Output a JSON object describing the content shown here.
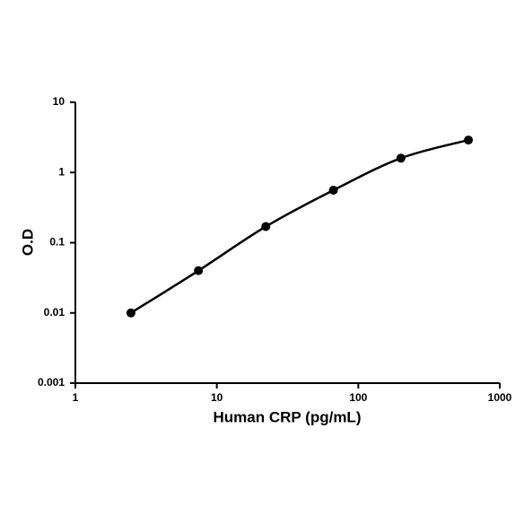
{
  "chart_data": {
    "type": "line",
    "x_label": "Human CRP (pg/mL)",
    "y_label": "O.D",
    "x": [
      2.47,
      7.41,
      22.2,
      66.7,
      200,
      600
    ],
    "series": [
      {
        "color": "#000000",
        "values": [
          0.01,
          0.04,
          0.17,
          0.56,
          1.6,
          2.9
        ]
      }
    ],
    "xscale": "log",
    "yscale": "log",
    "xlim": [
      1,
      1000
    ],
    "xticks": [
      1,
      10,
      100,
      1000
    ],
    "ylim": [
      0.001,
      10
    ],
    "yticks": [
      0.001,
      0.01,
      0.1,
      1,
      10
    ],
    "grid": false
  }
}
